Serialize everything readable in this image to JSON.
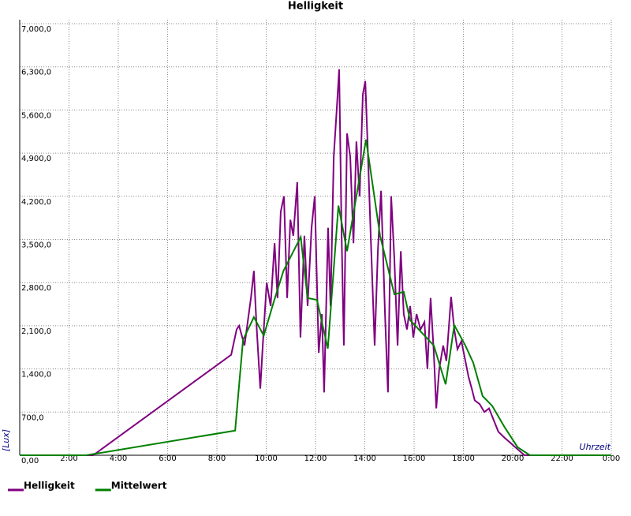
{
  "chart_data": {
    "type": "line",
    "title": "Helligkeit",
    "y_label": "[Lux]",
    "x_label": "Uhrzeit",
    "xlim": [
      0,
      24
    ],
    "ylim": [
      0,
      7000
    ],
    "grid": true,
    "legend": "bottom-left",
    "xticks": [
      {
        "value": 2,
        "label": "2:00"
      },
      {
        "value": 4,
        "label": "4:00"
      },
      {
        "value": 6,
        "label": "6:00"
      },
      {
        "value": 8,
        "label": "8:00"
      },
      {
        "value": 10,
        "label": "10:00"
      },
      {
        "value": 12,
        "label": "12:00"
      },
      {
        "value": 14,
        "label": "14:00"
      },
      {
        "value": 16,
        "label": "16:00"
      },
      {
        "value": 18,
        "label": "18:00"
      },
      {
        "value": 20,
        "label": "20:00"
      },
      {
        "value": 22,
        "label": "22:00"
      },
      {
        "value": 24,
        "label": "0:00"
      }
    ],
    "yticks": [
      {
        "value": 0,
        "label": "0,00"
      },
      {
        "value": 700,
        "label": "700,0"
      },
      {
        "value": 1400,
        "label": "1,400,0"
      },
      {
        "value": 2100,
        "label": "2,100,0"
      },
      {
        "value": 2800,
        "label": "2,800,0"
      },
      {
        "value": 3500,
        "label": "3,500,0"
      },
      {
        "value": 4200,
        "label": "4,200,0"
      },
      {
        "value": 4900,
        "label": "4,900,0"
      },
      {
        "value": 5600,
        "label": "5,600,0"
      },
      {
        "value": 6300,
        "label": "6,300,0"
      },
      {
        "value": 7000,
        "label": "7,000,0"
      }
    ],
    "series": [
      {
        "name": "Helligkeit",
        "color": "#800080",
        "x": [
          0,
          2.98,
          8.58,
          8.8,
          8.9,
          9.12,
          9.38,
          9.5,
          9.6,
          9.76,
          9.86,
          10.02,
          10.18,
          10.34,
          10.46,
          10.59,
          10.72,
          10.85,
          10.98,
          11.1,
          11.26,
          11.39,
          11.55,
          11.68,
          11.84,
          11.97,
          12.13,
          12.26,
          12.35,
          12.51,
          12.61,
          12.74,
          12.86,
          12.96,
          13.06,
          13.15,
          13.28,
          13.41,
          13.54,
          13.66,
          13.79,
          13.92,
          14.02,
          14.11,
          14.24,
          14.4,
          14.53,
          14.66,
          14.82,
          14.94,
          15.07,
          15.2,
          15.33,
          15.46,
          15.58,
          15.71,
          15.84,
          15.97,
          16.1,
          16.26,
          16.42,
          16.54,
          16.67,
          16.8,
          16.9,
          17.02,
          17.18,
          17.31,
          17.5,
          17.63,
          17.76,
          17.92,
          18.08,
          18.21,
          18.34,
          18.46,
          18.66,
          18.85,
          19.04,
          19.23,
          19.42,
          19.68,
          19.94,
          20.19,
          20.48,
          24
        ],
        "values": [
          0,
          0,
          1630,
          2040,
          2100,
          1780,
          2550,
          2990,
          2160,
          1080,
          1780,
          2800,
          2420,
          3440,
          2550,
          3950,
          4200,
          2550,
          3820,
          3560,
          4430,
          1910,
          3560,
          2420,
          3690,
          4200,
          1660,
          2290,
          1020,
          3690,
          2420,
          4840,
          5600,
          6260,
          3560,
          1780,
          5220,
          4840,
          3440,
          5090,
          4200,
          5850,
          6070,
          5090,
          3560,
          1780,
          3310,
          4290,
          2290,
          1020,
          4200,
          3180,
          1780,
          3310,
          2290,
          2040,
          2420,
          1910,
          2290,
          2040,
          2160,
          1400,
          2550,
          1660,
          760,
          1400,
          1780,
          1530,
          2570,
          2040,
          1720,
          1850,
          1530,
          1270,
          1080,
          890,
          830,
          700,
          760,
          570,
          380,
          280,
          190,
          100,
          0,
          0
        ]
      },
      {
        "name": "Mittelwert",
        "color": "#008000",
        "x": [
          0,
          2.7,
          8.74,
          9.06,
          9.5,
          9.9,
          10.3,
          10.7,
          11.4,
          11.68,
          12.06,
          12.5,
          12.93,
          13.28,
          14.05,
          14.62,
          15.2,
          15.58,
          15.84,
          16.8,
          17.28,
          17.63,
          18.08,
          18.4,
          18.78,
          19.17,
          19.68,
          20.2,
          20.7,
          24
        ],
        "values": [
          0,
          0,
          400,
          1870,
          2240,
          1940,
          2480,
          2990,
          3540,
          2550,
          2520,
          1730,
          4050,
          3310,
          5120,
          3560,
          2610,
          2650,
          2190,
          1780,
          1150,
          2110,
          1780,
          1500,
          960,
          800,
          450,
          130,
          0,
          0
        ]
      }
    ]
  }
}
